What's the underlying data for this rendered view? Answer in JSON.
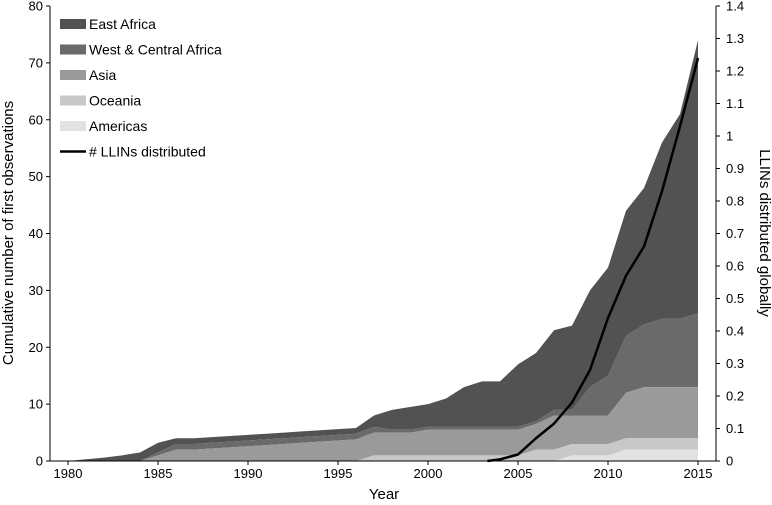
{
  "chart_data": {
    "type": "area",
    "xlabel": "Year",
    "ylabel": "Cumulative number of first observations",
    "y2label": "LLINs distributed globally",
    "xlim": [
      1979,
      2016
    ],
    "ylim": [
      0,
      80
    ],
    "y2lim": [
      0,
      1.4
    ],
    "x_ticks": [
      "1980",
      "1985",
      "1990",
      "1995",
      "2000",
      "2005",
      "2010",
      "2015"
    ],
    "y_ticks": [
      "0",
      "10",
      "20",
      "30",
      "40",
      "50",
      "60",
      "70",
      "80"
    ],
    "y2_ticks": [
      "0",
      "0.1",
      "0.2",
      "0.3",
      "0.4",
      "0.5",
      "0.6",
      "0.7",
      "0.8",
      "0.9",
      "1",
      "1.1",
      "1.2",
      "1.3",
      "1.4"
    ],
    "grid": false,
    "legend_position": "top-left",
    "x": [
      1980,
      1981,
      1982,
      1983,
      1984,
      1985,
      1986,
      1987,
      1988,
      1989,
      1990,
      1991,
      1992,
      1993,
      1994,
      1995,
      1996,
      1997,
      1998,
      1999,
      2000,
      2001,
      2002,
      2003,
      2004,
      2005,
      2006,
      2007,
      2008,
      2009,
      2010,
      2011,
      2012,
      2013,
      2014,
      2015
    ],
    "stacked_series": [
      {
        "name": "Americas",
        "color": "#e2e2e2",
        "values": [
          0,
          0,
          0,
          0,
          0,
          0,
          0,
          0,
          0,
          0,
          0,
          0,
          0,
          0,
          0,
          0,
          0,
          0,
          0,
          0,
          0,
          0,
          0,
          0,
          0,
          0,
          0,
          0,
          1,
          1,
          1,
          2,
          2,
          2,
          2,
          2
        ]
      },
      {
        "name": "Oceania",
        "color": "#c8c8c8",
        "values": [
          0,
          0,
          0,
          0,
          0,
          0,
          0,
          0,
          0,
          0,
          0,
          0,
          0,
          0,
          0,
          0,
          0,
          1,
          1,
          1,
          1,
          1,
          1,
          1,
          1,
          1,
          2,
          2,
          2,
          2,
          2,
          2,
          2,
          2,
          2,
          2
        ]
      },
      {
        "name": "Asia",
        "color": "#9a9a9a",
        "values": [
          0,
          0,
          0,
          0,
          0,
          1,
          2,
          2,
          2.2,
          2.4,
          2.6,
          2.8,
          3,
          3.2,
          3.4,
          3.6,
          3.8,
          4,
          4,
          4,
          4.5,
          4.5,
          4.5,
          4.5,
          4.5,
          4.5,
          4.5,
          6,
          5,
          5,
          5,
          8,
          9,
          9,
          9,
          9
        ]
      },
      {
        "name": "West & Central Africa",
        "color": "#6a6a6a",
        "values": [
          0,
          0,
          0,
          0,
          0,
          0.5,
          1,
          1,
          1,
          1,
          1,
          1,
          1,
          1,
          1,
          1,
          1,
          1,
          0.5,
          0.5,
          0.5,
          0.5,
          0.5,
          0.5,
          0.5,
          0.5,
          0.5,
          1,
          1,
          5,
          7,
          10,
          11,
          12,
          12,
          13
        ]
      },
      {
        "name": "East Africa",
        "color": "#525252",
        "values": [
          0,
          0.3,
          0.6,
          1,
          1.5,
          1.7,
          1,
          1,
          1,
          1,
          1,
          1,
          1,
          1,
          1,
          1,
          1,
          2,
          3.5,
          4,
          4,
          5,
          7,
          8,
          8,
          11,
          12,
          14,
          14.8,
          17,
          19,
          22,
          24,
          31,
          36,
          48
        ]
      }
    ],
    "line_series": {
      "name": "# LLINs distributed",
      "color": "#000000",
      "axis": "right",
      "x": [
        2003.3,
        2004,
        2005,
        2006,
        2007,
        2008,
        2009,
        2010,
        2011,
        2012,
        2013,
        2014,
        2015
      ],
      "y": [
        0,
        0.005,
        0.02,
        0.07,
        0.115,
        0.18,
        0.28,
        0.44,
        0.57,
        0.66,
        0.83,
        1.03,
        1.24
      ]
    }
  }
}
